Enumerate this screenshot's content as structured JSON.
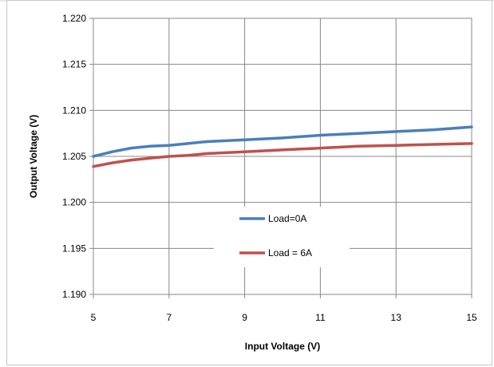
{
  "chart_data": {
    "type": "line",
    "title": "",
    "xlabel": "Input Voltage (V)",
    "ylabel": "Output Voltage (V)",
    "xlim": [
      5,
      15
    ],
    "ylim": [
      1.19,
      1.22
    ],
    "x_ticks": [
      "5",
      "7",
      "9",
      "11",
      "13",
      "15"
    ],
    "y_ticks": [
      "1.190",
      "1.195",
      "1.200",
      "1.205",
      "1.210",
      "1.215",
      "1.220"
    ],
    "grid": true,
    "legend_position": "center",
    "series": [
      {
        "name": "Load=0A",
        "color": "#4a7ebf",
        "x": [
          5,
          5.5,
          6,
          6.5,
          7,
          7.5,
          8,
          9,
          10,
          11,
          12,
          13,
          14,
          15
        ],
        "y": [
          1.205,
          1.2055,
          1.2059,
          1.2061,
          1.2062,
          1.2064,
          1.2066,
          1.2068,
          1.207,
          1.2073,
          1.2075,
          1.2077,
          1.2079,
          1.2082
        ]
      },
      {
        "name": "Load = 6A",
        "color": "#c0504d",
        "x": [
          5,
          5.5,
          6,
          6.5,
          7,
          7.5,
          8,
          9,
          10,
          11,
          12,
          13,
          14,
          15
        ],
        "y": [
          1.2039,
          1.2043,
          1.2046,
          1.2048,
          1.205,
          1.2051,
          1.2053,
          1.2055,
          1.2057,
          1.2059,
          1.2061,
          1.2062,
          1.2063,
          1.2064
        ]
      }
    ]
  }
}
